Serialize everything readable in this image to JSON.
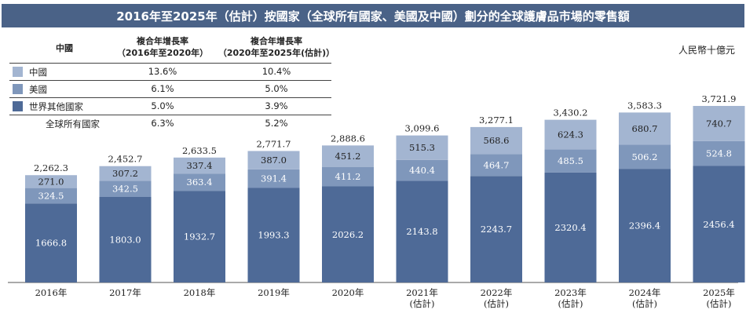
{
  "title": "2016年至2025年（估計）按國家（全球所有國家、美國及中國）劃分的全球護膚品市場的零售額",
  "unit": "人民幣十億元",
  "legend_table": {
    "header_country": "中國",
    "header_cagr1": [
      "複合年增長率",
      "（2016年至2020年）"
    ],
    "header_cagr2": [
      "複合年增長率",
      "（2020年至2025年(估計)）"
    ],
    "rows": [
      {
        "name": "中國",
        "cagr1": "13.6%",
        "cagr2": "10.4%"
      },
      {
        "name": "美國",
        "cagr1": "6.1%",
        "cagr2": "5.0%"
      },
      {
        "name": "世界其他國家",
        "cagr1": "5.0%",
        "cagr2": "3.9%"
      }
    ],
    "total_row": {
      "name": "全球所有國家",
      "cagr1": "6.3%",
      "cagr2": "5.2%"
    }
  },
  "colors": {
    "title_bg": "#4a6287",
    "china": "#a3b5d1",
    "usa": "#7f97bb",
    "rest": "#4e6a97",
    "label_dark": "#222222",
    "label_light": "#ffffff"
  },
  "chart_data": {
    "type": "bar",
    "stacked": true,
    "categories": [
      "2016年",
      "2017年",
      "2018年",
      "2019年",
      "2020年",
      "2021年\n(估計)",
      "2022年\n(估計)",
      "2023年\n(估計)",
      "2024年\n(估計)",
      "2025年\n(估計)"
    ],
    "series": [
      {
        "name": "世界其他國家",
        "values": [
          1666.8,
          1803.0,
          1932.7,
          1993.3,
          2026.2,
          2143.8,
          2243.7,
          2320.4,
          2396.4,
          2456.4
        ]
      },
      {
        "name": "美國",
        "values": [
          324.5,
          342.5,
          363.4,
          391.4,
          411.2,
          440.4,
          464.7,
          485.5,
          506.2,
          524.8
        ]
      },
      {
        "name": "中國",
        "values": [
          271.0,
          307.2,
          337.4,
          387.0,
          451.2,
          515.3,
          568.6,
          624.3,
          680.7,
          740.7
        ]
      }
    ],
    "totals": [
      "2,262.3",
      "2,452.7",
      "2,633.5",
      "2,771.7",
      "2,888.6",
      "3,099.6",
      "3,277.1",
      "3,430.2",
      "3,583.3",
      "3,721.9"
    ],
    "ylim": [
      0,
      3721.9
    ]
  }
}
